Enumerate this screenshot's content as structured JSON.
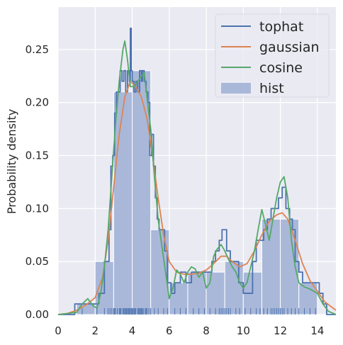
{
  "chart_data": {
    "type": "line",
    "title": "",
    "xlabel": "",
    "ylabel": "Probability density",
    "xlim": [
      0,
      15
    ],
    "ylim": [
      0,
      0.29
    ],
    "xticks": [
      0,
      2,
      4,
      6,
      8,
      10,
      12,
      14
    ],
    "yticks": [
      0.0,
      0.05,
      0.1,
      0.15,
      0.2,
      0.25
    ],
    "ytick_labels": [
      "0.00",
      "0.05",
      "0.10",
      "0.15",
      "0.20",
      "0.25"
    ],
    "grid": true,
    "legend_position": "top-right",
    "background_color": "#eaeaf2",
    "grid_color": "#ffffff",
    "histogram": {
      "name": "hist",
      "color": "#a9b8d9",
      "bins": [
        {
          "x0": 1,
          "x1": 2,
          "value": 0.01
        },
        {
          "x0": 2,
          "x1": 3,
          "value": 0.05
        },
        {
          "x0": 3,
          "x1": 4,
          "value": 0.21
        },
        {
          "x0": 4,
          "x1": 5,
          "value": 0.23
        },
        {
          "x0": 5,
          "x1": 6,
          "value": 0.08
        },
        {
          "x0": 6,
          "x1": 7,
          "value": 0.03
        },
        {
          "x0": 7,
          "x1": 8,
          "value": 0.04
        },
        {
          "x0": 8,
          "x1": 9,
          "value": 0.04
        },
        {
          "x0": 9,
          "x1": 10,
          "value": 0.05
        },
        {
          "x0": 10,
          "x1": 11,
          "value": 0.04
        },
        {
          "x0": 11,
          "x1": 12,
          "value": 0.09
        },
        {
          "x0": 12,
          "x1": 13,
          "value": 0.09
        },
        {
          "x0": 13,
          "x1": 14,
          "value": 0.03
        }
      ]
    },
    "rug": {
      "color": "#4c72b0",
      "x": [
        1.3,
        2.1,
        2.5,
        2.7,
        2.8,
        2.9,
        3.0,
        3.05,
        3.1,
        3.2,
        3.3,
        3.35,
        3.4,
        3.5,
        3.55,
        3.6,
        3.65,
        3.7,
        3.75,
        3.8,
        3.85,
        3.9,
        3.95,
        4.0,
        4.05,
        4.1,
        4.15,
        4.2,
        4.3,
        4.35,
        4.4,
        4.45,
        4.5,
        4.55,
        4.6,
        4.7,
        4.75,
        4.8,
        4.9,
        5.0,
        5.2,
        5.4,
        5.7,
        5.9,
        6.3,
        6.6,
        6.9,
        7.3,
        7.6,
        7.9,
        8.2,
        8.5,
        8.7,
        8.8,
        8.9,
        9.0,
        9.1,
        9.2,
        9.3,
        9.6,
        9.8,
        10.1,
        10.4,
        10.7,
        10.9,
        11.1,
        11.3,
        11.5,
        11.6,
        11.7,
        11.8,
        11.9,
        12.0,
        12.1,
        12.2,
        12.4,
        12.6,
        12.8,
        13.0,
        13.3,
        13.6,
        13.9
      ]
    },
    "series": [
      {
        "name": "tophat",
        "color": "#4c72b0",
        "step": true,
        "points": [
          [
            0,
            0
          ],
          [
            0.8,
            0
          ],
          [
            0.9,
            0.01
          ],
          [
            2.0,
            0.01
          ],
          [
            2.2,
            0.02
          ],
          [
            2.4,
            0.02
          ],
          [
            2.5,
            0.05
          ],
          [
            2.6,
            0.05
          ],
          [
            2.75,
            0.08
          ],
          [
            2.85,
            0.14
          ],
          [
            2.95,
            0.15
          ],
          [
            3.05,
            0.19
          ],
          [
            3.15,
            0.21
          ],
          [
            3.25,
            0.21
          ],
          [
            3.35,
            0.23
          ],
          [
            3.45,
            0.22
          ],
          [
            3.55,
            0.23
          ],
          [
            3.65,
            0.21
          ],
          [
            3.75,
            0.23
          ],
          [
            3.85,
            0.22
          ],
          [
            3.9,
            0.27
          ],
          [
            3.95,
            0.23
          ],
          [
            4.0,
            0.22
          ],
          [
            4.1,
            0.21
          ],
          [
            4.2,
            0.22
          ],
          [
            4.3,
            0.21
          ],
          [
            4.4,
            0.23
          ],
          [
            4.5,
            0.22
          ],
          [
            4.55,
            0.23
          ],
          [
            4.65,
            0.22
          ],
          [
            4.75,
            0.21
          ],
          [
            4.85,
            0.2
          ],
          [
            4.95,
            0.15
          ],
          [
            5.05,
            0.17
          ],
          [
            5.15,
            0.14
          ],
          [
            5.25,
            0.11
          ],
          [
            5.35,
            0.09
          ],
          [
            5.45,
            0.08
          ],
          [
            5.6,
            0.08
          ],
          [
            5.75,
            0.06
          ],
          [
            5.9,
            0.03
          ],
          [
            6.1,
            0.02
          ],
          [
            6.3,
            0.03
          ],
          [
            6.6,
            0.04
          ],
          [
            6.9,
            0.03
          ],
          [
            7.2,
            0.04
          ],
          [
            7.6,
            0.04
          ],
          [
            8.0,
            0.04
          ],
          [
            8.3,
            0.05
          ],
          [
            8.5,
            0.06
          ],
          [
            8.7,
            0.07
          ],
          [
            8.85,
            0.08
          ],
          [
            9.1,
            0.06
          ],
          [
            9.3,
            0.05
          ],
          [
            9.5,
            0.05
          ],
          [
            9.75,
            0.03
          ],
          [
            10.0,
            0.02
          ],
          [
            10.2,
            0.02
          ],
          [
            10.5,
            0.05
          ],
          [
            10.7,
            0.07
          ],
          [
            10.9,
            0.07
          ],
          [
            11.1,
            0.08
          ],
          [
            11.3,
            0.09
          ],
          [
            11.5,
            0.1
          ],
          [
            11.7,
            0.1
          ],
          [
            11.9,
            0.11
          ],
          [
            12.1,
            0.12
          ],
          [
            12.3,
            0.1
          ],
          [
            12.5,
            0.09
          ],
          [
            12.65,
            0.08
          ],
          [
            12.8,
            0.05
          ],
          [
            13.0,
            0.04
          ],
          [
            13.2,
            0.03
          ],
          [
            13.5,
            0.03
          ],
          [
            13.9,
            0.03
          ],
          [
            14.1,
            0.02
          ],
          [
            14.3,
            0.01
          ],
          [
            14.5,
            0.0
          ],
          [
            15,
            0
          ]
        ]
      },
      {
        "name": "gaussian",
        "color": "#dd8452",
        "step": false,
        "points": [
          [
            0,
            0
          ],
          [
            0.5,
            0.001
          ],
          [
            1.0,
            0.004
          ],
          [
            1.5,
            0.009
          ],
          [
            2.0,
            0.016
          ],
          [
            2.4,
            0.035
          ],
          [
            2.7,
            0.07
          ],
          [
            3.0,
            0.12
          ],
          [
            3.3,
            0.17
          ],
          [
            3.6,
            0.205
          ],
          [
            3.9,
            0.22
          ],
          [
            4.2,
            0.215
          ],
          [
            4.5,
            0.205
          ],
          [
            4.8,
            0.185
          ],
          [
            5.1,
            0.15
          ],
          [
            5.4,
            0.11
          ],
          [
            5.7,
            0.075
          ],
          [
            6.0,
            0.05
          ],
          [
            6.4,
            0.04
          ],
          [
            6.8,
            0.038
          ],
          [
            7.2,
            0.038
          ],
          [
            7.6,
            0.039
          ],
          [
            8.0,
            0.042
          ],
          [
            8.4,
            0.048
          ],
          [
            8.8,
            0.055
          ],
          [
            9.1,
            0.055
          ],
          [
            9.4,
            0.05
          ],
          [
            9.8,
            0.045
          ],
          [
            10.2,
            0.048
          ],
          [
            10.6,
            0.06
          ],
          [
            11.0,
            0.075
          ],
          [
            11.4,
            0.088
          ],
          [
            11.8,
            0.094
          ],
          [
            12.1,
            0.096
          ],
          [
            12.4,
            0.09
          ],
          [
            12.8,
            0.07
          ],
          [
            13.2,
            0.048
          ],
          [
            13.6,
            0.032
          ],
          [
            14.0,
            0.022
          ],
          [
            14.4,
            0.012
          ],
          [
            15,
            0.004
          ]
        ]
      },
      {
        "name": "cosine",
        "color": "#55a868",
        "step": false,
        "points": [
          [
            0,
            0
          ],
          [
            1.0,
            0.002
          ],
          [
            1.3,
            0.01
          ],
          [
            1.6,
            0.015
          ],
          [
            1.9,
            0.008
          ],
          [
            2.1,
            0.006
          ],
          [
            2.3,
            0.02
          ],
          [
            2.5,
            0.045
          ],
          [
            2.7,
            0.08
          ],
          [
            2.9,
            0.13
          ],
          [
            3.1,
            0.18
          ],
          [
            3.3,
            0.22
          ],
          [
            3.5,
            0.25
          ],
          [
            3.6,
            0.258
          ],
          [
            3.75,
            0.24
          ],
          [
            3.9,
            0.215
          ],
          [
            4.1,
            0.215
          ],
          [
            4.3,
            0.22
          ],
          [
            4.5,
            0.225
          ],
          [
            4.65,
            0.228
          ],
          [
            4.8,
            0.205
          ],
          [
            5.0,
            0.175
          ],
          [
            5.2,
            0.13
          ],
          [
            5.4,
            0.09
          ],
          [
            5.6,
            0.065
          ],
          [
            5.8,
            0.04
          ],
          [
            6.0,
            0.015
          ],
          [
            6.2,
            0.025
          ],
          [
            6.4,
            0.042
          ],
          [
            6.6,
            0.038
          ],
          [
            6.8,
            0.03
          ],
          [
            7.0,
            0.04
          ],
          [
            7.2,
            0.045
          ],
          [
            7.4,
            0.043
          ],
          [
            7.6,
            0.035
          ],
          [
            7.8,
            0.04
          ],
          [
            8.0,
            0.025
          ],
          [
            8.2,
            0.03
          ],
          [
            8.4,
            0.055
          ],
          [
            8.6,
            0.062
          ],
          [
            8.8,
            0.066
          ],
          [
            9.0,
            0.06
          ],
          [
            9.2,
            0.052
          ],
          [
            9.4,
            0.045
          ],
          [
            9.6,
            0.04
          ],
          [
            9.8,
            0.03
          ],
          [
            10.0,
            0.025
          ],
          [
            10.2,
            0.03
          ],
          [
            10.4,
            0.045
          ],
          [
            10.6,
            0.06
          ],
          [
            10.8,
            0.08
          ],
          [
            11.0,
            0.099
          ],
          [
            11.2,
            0.085
          ],
          [
            11.4,
            0.07
          ],
          [
            11.6,
            0.09
          ],
          [
            11.8,
            0.11
          ],
          [
            12.0,
            0.125
          ],
          [
            12.2,
            0.13
          ],
          [
            12.4,
            0.11
          ],
          [
            12.6,
            0.07
          ],
          [
            12.8,
            0.045
          ],
          [
            13.0,
            0.03
          ],
          [
            13.3,
            0.026
          ],
          [
            13.6,
            0.024
          ],
          [
            14.0,
            0.02
          ],
          [
            14.3,
            0.01
          ],
          [
            14.6,
            0.003
          ],
          [
            15,
            0
          ]
        ]
      }
    ],
    "legend": [
      {
        "label": "tophat",
        "kind": "line",
        "color": "#4c72b0"
      },
      {
        "label": "gaussian",
        "kind": "line",
        "color": "#dd8452"
      },
      {
        "label": "cosine",
        "kind": "line",
        "color": "#55a868"
      },
      {
        "label": "hist",
        "kind": "patch",
        "color": "#a9b8d9"
      }
    ]
  }
}
